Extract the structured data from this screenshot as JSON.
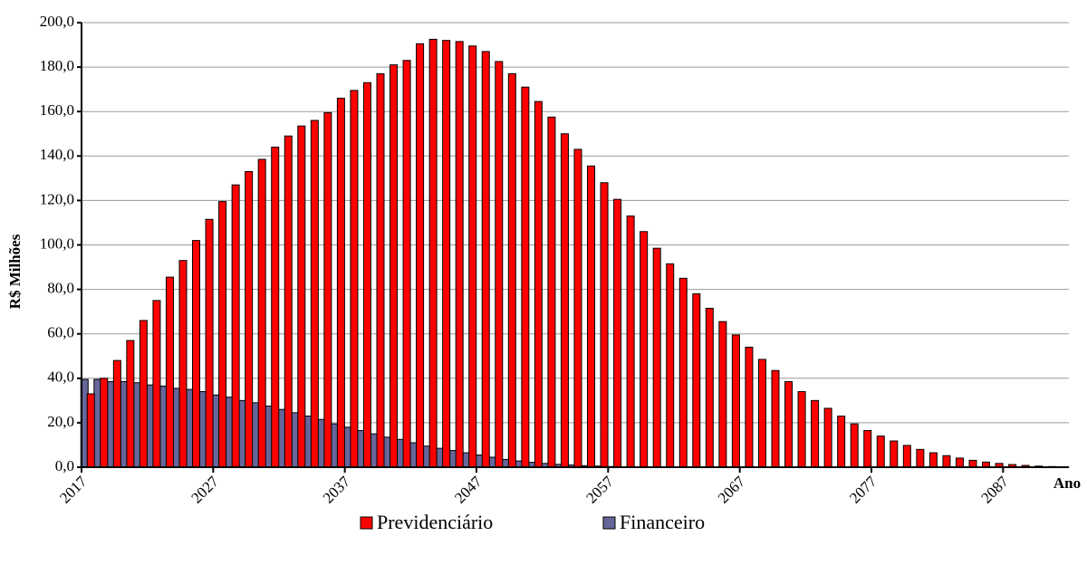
{
  "chart_data": {
    "type": "bar",
    "y_label": "R$ Milhões",
    "x_label": "Ano",
    "categories": [
      "2017",
      null,
      null,
      null,
      null,
      null,
      null,
      null,
      null,
      null,
      "2027",
      null,
      null,
      null,
      null,
      null,
      null,
      null,
      null,
      null,
      "2037",
      null,
      null,
      null,
      null,
      null,
      null,
      null,
      null,
      null,
      "2047",
      null,
      null,
      null,
      null,
      null,
      null,
      null,
      null,
      null,
      "2057",
      null,
      null,
      null,
      null,
      null,
      null,
      null,
      null,
      null,
      "2067",
      null,
      null,
      null,
      null,
      null,
      null,
      null,
      null,
      null,
      "2077",
      null,
      null,
      null,
      null,
      null,
      null,
      null,
      null,
      null,
      "2087",
      null,
      null,
      null,
      null
    ],
    "series": [
      {
        "name": "Previdenciário",
        "color": "#ff0000",
        "values": [
          33,
          40,
          48,
          57,
          66,
          75,
          85.5,
          93,
          102,
          111.5,
          119.5,
          127,
          133,
          138.5,
          144,
          149,
          153.5,
          156,
          159.5,
          166,
          169.5,
          173,
          177,
          181,
          183,
          190.5,
          192.5,
          192,
          191.5,
          189.5,
          187,
          182.5,
          177,
          171,
          164.5,
          157.5,
          150,
          143,
          135.5,
          128,
          120.5,
          113,
          106,
          98.5,
          91.5,
          85,
          78,
          71.5,
          65.5,
          59.5,
          54,
          48.5,
          43.5,
          38.5,
          34,
          30,
          26.5,
          23,
          19.5,
          16.5,
          14,
          11.8,
          9.8,
          8,
          6.5,
          5.2,
          4.1,
          3.1,
          2.3,
          1.7,
          1.2,
          0.8,
          0.5,
          0.3,
          0.2
        ]
      },
      {
        "name": "Financeiro",
        "color": "#666699",
        "values": [
          39.5,
          39.5,
          38.5,
          38.5,
          38,
          37,
          36.5,
          35.5,
          35,
          34,
          32.5,
          31.5,
          30,
          29,
          27.5,
          26,
          24.5,
          23,
          21.5,
          19.5,
          18,
          16.5,
          15,
          13.5,
          12.5,
          11,
          9.5,
          8.5,
          7.5,
          6.5,
          5.5,
          4.5,
          3.5,
          2.8,
          2.2,
          1.7,
          1.3,
          1,
          0.7,
          0.5,
          0.3,
          0.2,
          0.1,
          0,
          0,
          0,
          0,
          0,
          0,
          0,
          0,
          0,
          0,
          0,
          0,
          0,
          0,
          0,
          0,
          0,
          0,
          0,
          0,
          0,
          0,
          0,
          0,
          0,
          0,
          0,
          0,
          0,
          0,
          0,
          0
        ]
      }
    ],
    "ylim": [
      0,
      200
    ],
    "yticks": [
      {
        "value": 0,
        "label": "0,0"
      },
      {
        "value": 20,
        "label": "20,0"
      },
      {
        "value": 40,
        "label": "40,0"
      },
      {
        "value": 60,
        "label": "60,0"
      },
      {
        "value": 80,
        "label": "80,0"
      },
      {
        "value": 100,
        "label": "100,0"
      },
      {
        "value": 120,
        "label": "120,0"
      },
      {
        "value": 140,
        "label": "140,0"
      },
      {
        "value": 160,
        "label": "160,0"
      },
      {
        "value": 180,
        "label": "180,0"
      },
      {
        "value": 200,
        "label": "200,0"
      }
    ],
    "grid": true,
    "legend": "bottom"
  }
}
